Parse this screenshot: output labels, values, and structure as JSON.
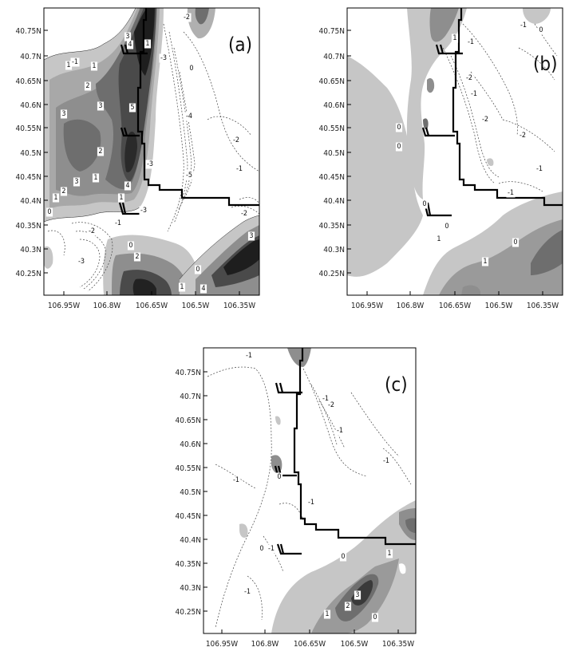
{
  "panels": [
    {
      "id": "a",
      "label": "(a)",
      "y_ticks": [
        "40.75N",
        "40.7N",
        "40.65N",
        "40.6N",
        "40.55N",
        "40.5N",
        "40.45N",
        "40.4N",
        "40.35N",
        "40.3N",
        "40.25N"
      ],
      "x_ticks": [
        "106.95W",
        "106.8W",
        "106.65W",
        "106.5W",
        "106.35W"
      ],
      "contour_labels": [
        "3",
        "4",
        "1",
        "1",
        "2",
        "3",
        "3",
        "5",
        "2",
        "3",
        "1",
        "2",
        "1",
        "1",
        "0",
        "1",
        "4",
        "-1",
        "-3",
        "-4",
        "-2",
        "-3",
        "-5",
        "-3",
        "-1",
        "-2",
        "-3",
        "-1",
        "-2",
        "0",
        "0",
        "2",
        "1",
        "4",
        "3",
        "-2",
        "0"
      ]
    },
    {
      "id": "b",
      "label": "(b)",
      "y_ticks": [
        "40.75N",
        "40.7N",
        "40.65N",
        "40.6N",
        "40.55N",
        "40.5N",
        "40.45N",
        "40.4N",
        "40.35N",
        "40.3N",
        "40.25N"
      ],
      "x_ticks": [
        "106.95W",
        "106.8W",
        "106.65W",
        "106.5W",
        "106.35W"
      ],
      "contour_labels": [
        "-1",
        "0",
        "-2",
        "1",
        "-1",
        "0",
        "-1",
        "-2",
        "0",
        "-2",
        "-1",
        "-1",
        "0",
        "0",
        "1",
        "1",
        "0"
      ]
    },
    {
      "id": "c",
      "label": "(c)",
      "y_ticks": [
        "40.75N",
        "40.7N",
        "40.65N",
        "40.6N",
        "40.55N",
        "40.5N",
        "40.45N",
        "40.4N",
        "40.35N",
        "40.3N",
        "40.25N"
      ],
      "x_ticks": [
        "106.95W",
        "106.8W",
        "106.65W",
        "106.5W",
        "106.35W"
      ],
      "contour_labels": [
        "-1",
        "-1",
        "-2",
        "-1",
        "-1",
        "0",
        "-1",
        "-1",
        "0",
        "-1",
        "0",
        "1",
        "-1",
        "1",
        "2",
        "3",
        "0"
      ]
    }
  ]
}
